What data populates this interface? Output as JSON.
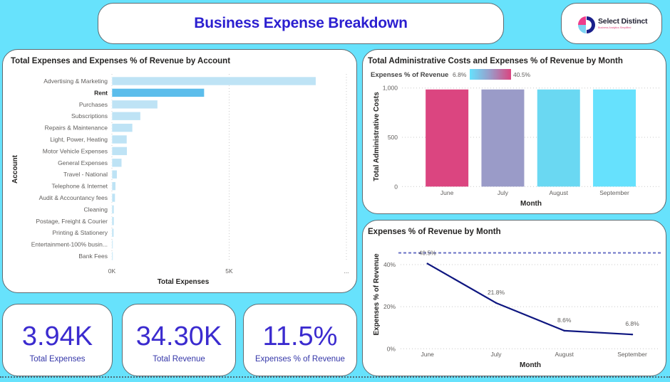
{
  "header": {
    "title": "Business Expense Breakdown"
  },
  "logo": {
    "name": "Select Distinct",
    "tagline": "Business Analytics Simplified",
    "colors": {
      "pink": "#EE3D8B",
      "light_blue": "#7DD3F2",
      "navy": "#1A1F8C"
    }
  },
  "theme": {
    "background": "#67E2FC",
    "kpi_color": "#3B2BCF",
    "title_color": "#2B1FD0"
  },
  "kpis": [
    {
      "value": "3.94K",
      "label": "Total Expenses"
    },
    {
      "value": "34.30K",
      "label": "Total Revenue"
    },
    {
      "value": "11.5%",
      "label": "Expenses % of Revenue"
    }
  ],
  "chart_data": [
    {
      "type": "bar",
      "orientation": "horizontal",
      "title": "Total Expenses and Expenses % of Revenue by Account",
      "xlabel": "Total Expenses",
      "ylabel": "Account",
      "categories": [
        "Advertising & Marketing",
        "Rent",
        "Purchases",
        "Subscriptions",
        "Repairs & Maintenance",
        "Light, Power, Heating",
        "Motor Vehicle Expenses",
        "General Expenses",
        "Travel - National",
        "Telephone & Internet",
        "Audit & Accountancy fees",
        "Cleaning",
        "Postage, Freight & Courier",
        "Printing & Stationery",
        "Entertainment-100% busin...",
        "Bank Fees"
      ],
      "values": [
        8700,
        3940,
        1950,
        1220,
        880,
        640,
        650,
        420,
        220,
        160,
        140,
        90,
        90,
        80,
        40,
        30
      ],
      "selected": "Rent",
      "x_range": [
        0,
        10000
      ],
      "x_ticks": [
        0,
        5000,
        10000
      ],
      "x_tick_labels": [
        "0K",
        "5K",
        "..."
      ],
      "grid": true,
      "colors": {
        "default": "#BEE3F5",
        "selected": "#5CBDEB"
      }
    },
    {
      "type": "bar",
      "orientation": "vertical",
      "title": "Total Administrative Costs and Expenses % of Revenue by Month",
      "xlabel": "Month",
      "ylabel": "Total Administrative Costs",
      "categories": [
        "June",
        "July",
        "August",
        "September"
      ],
      "values": [
        985,
        985,
        985,
        985
      ],
      "color_values": [
        40.5,
        21.8,
        8.6,
        6.8
      ],
      "bar_colors": [
        "#DB4580",
        "#9A9BC8",
        "#6AD8F2",
        "#66E1FD"
      ],
      "y_range": [
        0,
        1000
      ],
      "y_ticks": [
        0,
        500,
        1000
      ],
      "y_tick_labels": [
        "0",
        "500",
        "1,000"
      ],
      "grid": true,
      "legend": {
        "title": "Expenses % of Revenue",
        "min_label": "6.8%",
        "max_label": "40.5%",
        "min_color": "#66E1FD",
        "max_color": "#DB4580",
        "placement": "top-left"
      }
    },
    {
      "type": "line",
      "title": "Expenses % of Revenue by Month",
      "xlabel": "Month",
      "ylabel": "Expenses % of Revenue",
      "categories": [
        "June",
        "July",
        "August",
        "September"
      ],
      "values": [
        40.5,
        21.8,
        8.6,
        6.8
      ],
      "data_labels": [
        "40.5%",
        "21.8%",
        "8.6%",
        "6.8%"
      ],
      "y_range": [
        0,
        45.6
      ],
      "y_ticks": [
        0,
        20,
        40
      ],
      "y_tick_labels": [
        "0%",
        "20%",
        "40%"
      ],
      "reference_line": 45.6,
      "grid": true,
      "colors": {
        "line": "#0E1680",
        "reference": "#6A72C6"
      }
    }
  ]
}
